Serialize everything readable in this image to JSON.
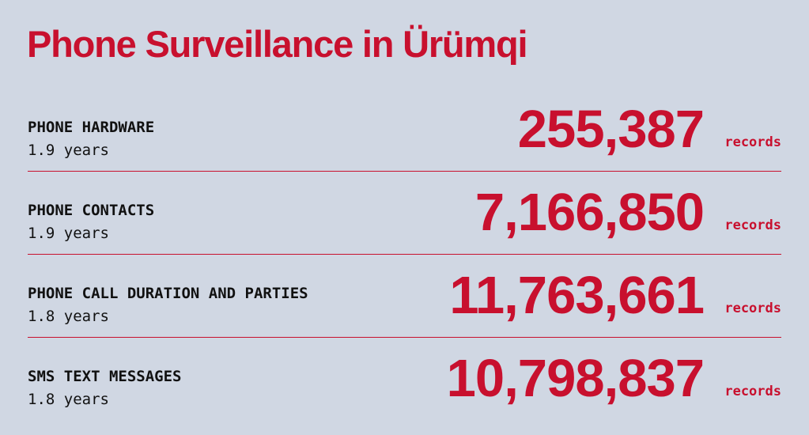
{
  "header": {
    "title": "Phone Surveillance in Ürümqi"
  },
  "rows": [
    {
      "label": "PHONE HARDWARE",
      "duration": "1.9 years",
      "count": "255,387",
      "unit": "records"
    },
    {
      "label": "PHONE CONTACTS",
      "duration": "1.9 years",
      "count": "7,166,850",
      "unit": "records"
    },
    {
      "label": "PHONE CALL DURATION AND PARTIES",
      "duration": "1.8 years",
      "count": "11,763,661",
      "unit": "records"
    },
    {
      "label": "SMS TEXT MESSAGES",
      "duration": "1.8 years",
      "count": "10,798,837",
      "unit": "records"
    }
  ]
}
